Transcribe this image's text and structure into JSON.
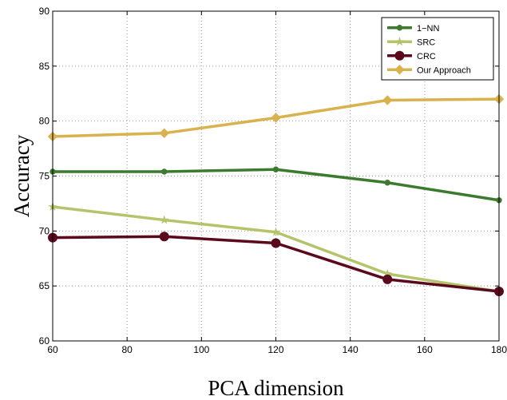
{
  "chart_data": {
    "type": "line",
    "xlabel": "PCA dimension",
    "ylabel": "Accuracy",
    "xlim": [
      60,
      180
    ],
    "ylim": [
      60,
      90
    ],
    "xticks": [
      60,
      80,
      100,
      120,
      140,
      160,
      180
    ],
    "yticks": [
      60,
      65,
      70,
      75,
      80,
      85,
      90
    ],
    "xtick_labels": [
      "60",
      "80",
      "100",
      "120",
      "140",
      "160",
      "180"
    ],
    "ytick_labels": [
      "60",
      "65",
      "70",
      "75",
      "80",
      "85",
      "90"
    ],
    "grid": true,
    "legend_position": "top-right",
    "x": [
      60,
      90,
      120,
      150,
      180
    ],
    "series": [
      {
        "name": "1−NN",
        "values": [
          75.4,
          75.4,
          75.6,
          74.4,
          72.8
        ],
        "color": "#3c7a2e",
        "marker": "circle-small"
      },
      {
        "name": "SRC",
        "values": [
          72.2,
          71.0,
          69.9,
          66.1,
          64.5
        ],
        "color": "#b5c46a",
        "marker": "star"
      },
      {
        "name": "CRC",
        "values": [
          69.4,
          69.5,
          68.9,
          65.6,
          64.5
        ],
        "color": "#5b0a1e",
        "marker": "circle-large"
      },
      {
        "name": "Our Approach",
        "values": [
          78.6,
          78.9,
          80.3,
          81.9,
          82.0
        ],
        "color": "#d9b24e",
        "marker": "diamond"
      }
    ]
  }
}
